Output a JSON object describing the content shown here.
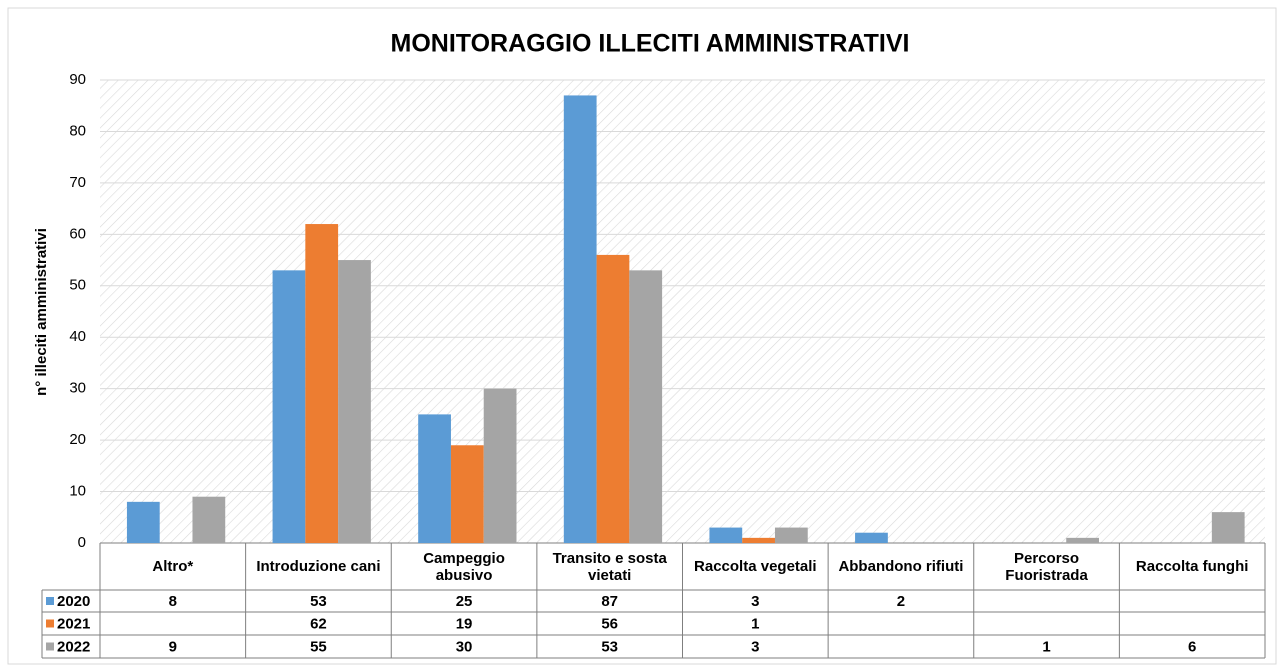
{
  "chart_data": {
    "type": "bar",
    "title": "MONITORAGGIO ILLECITI AMMINISTRATIVI",
    "y_label": "n° illeciti amministrativi",
    "categories": [
      "Altro*",
      "Introduzione cani",
      "Campeggio abusivo",
      "Transito e sosta vietati",
      "Raccolta vegetali",
      "Abbandono rifiuti",
      "Percorso Fuoristrada",
      "Raccolta funghi"
    ],
    "series": [
      {
        "name": "2020",
        "color": "#5b9bd5",
        "values": [
          8,
          53,
          25,
          87,
          3,
          2,
          null,
          null
        ]
      },
      {
        "name": "2021",
        "color": "#ed7d31",
        "values": [
          null,
          62,
          19,
          56,
          1,
          null,
          null,
          null
        ]
      },
      {
        "name": "2022",
        "color": "#a5a5a5",
        "values": [
          9,
          55,
          30,
          53,
          3,
          null,
          1,
          6
        ]
      }
    ],
    "ylim": [
      0,
      90
    ],
    "yticks": [
      0,
      10,
      20,
      30,
      40,
      50,
      60,
      70,
      80,
      90
    ],
    "grid": true
  }
}
